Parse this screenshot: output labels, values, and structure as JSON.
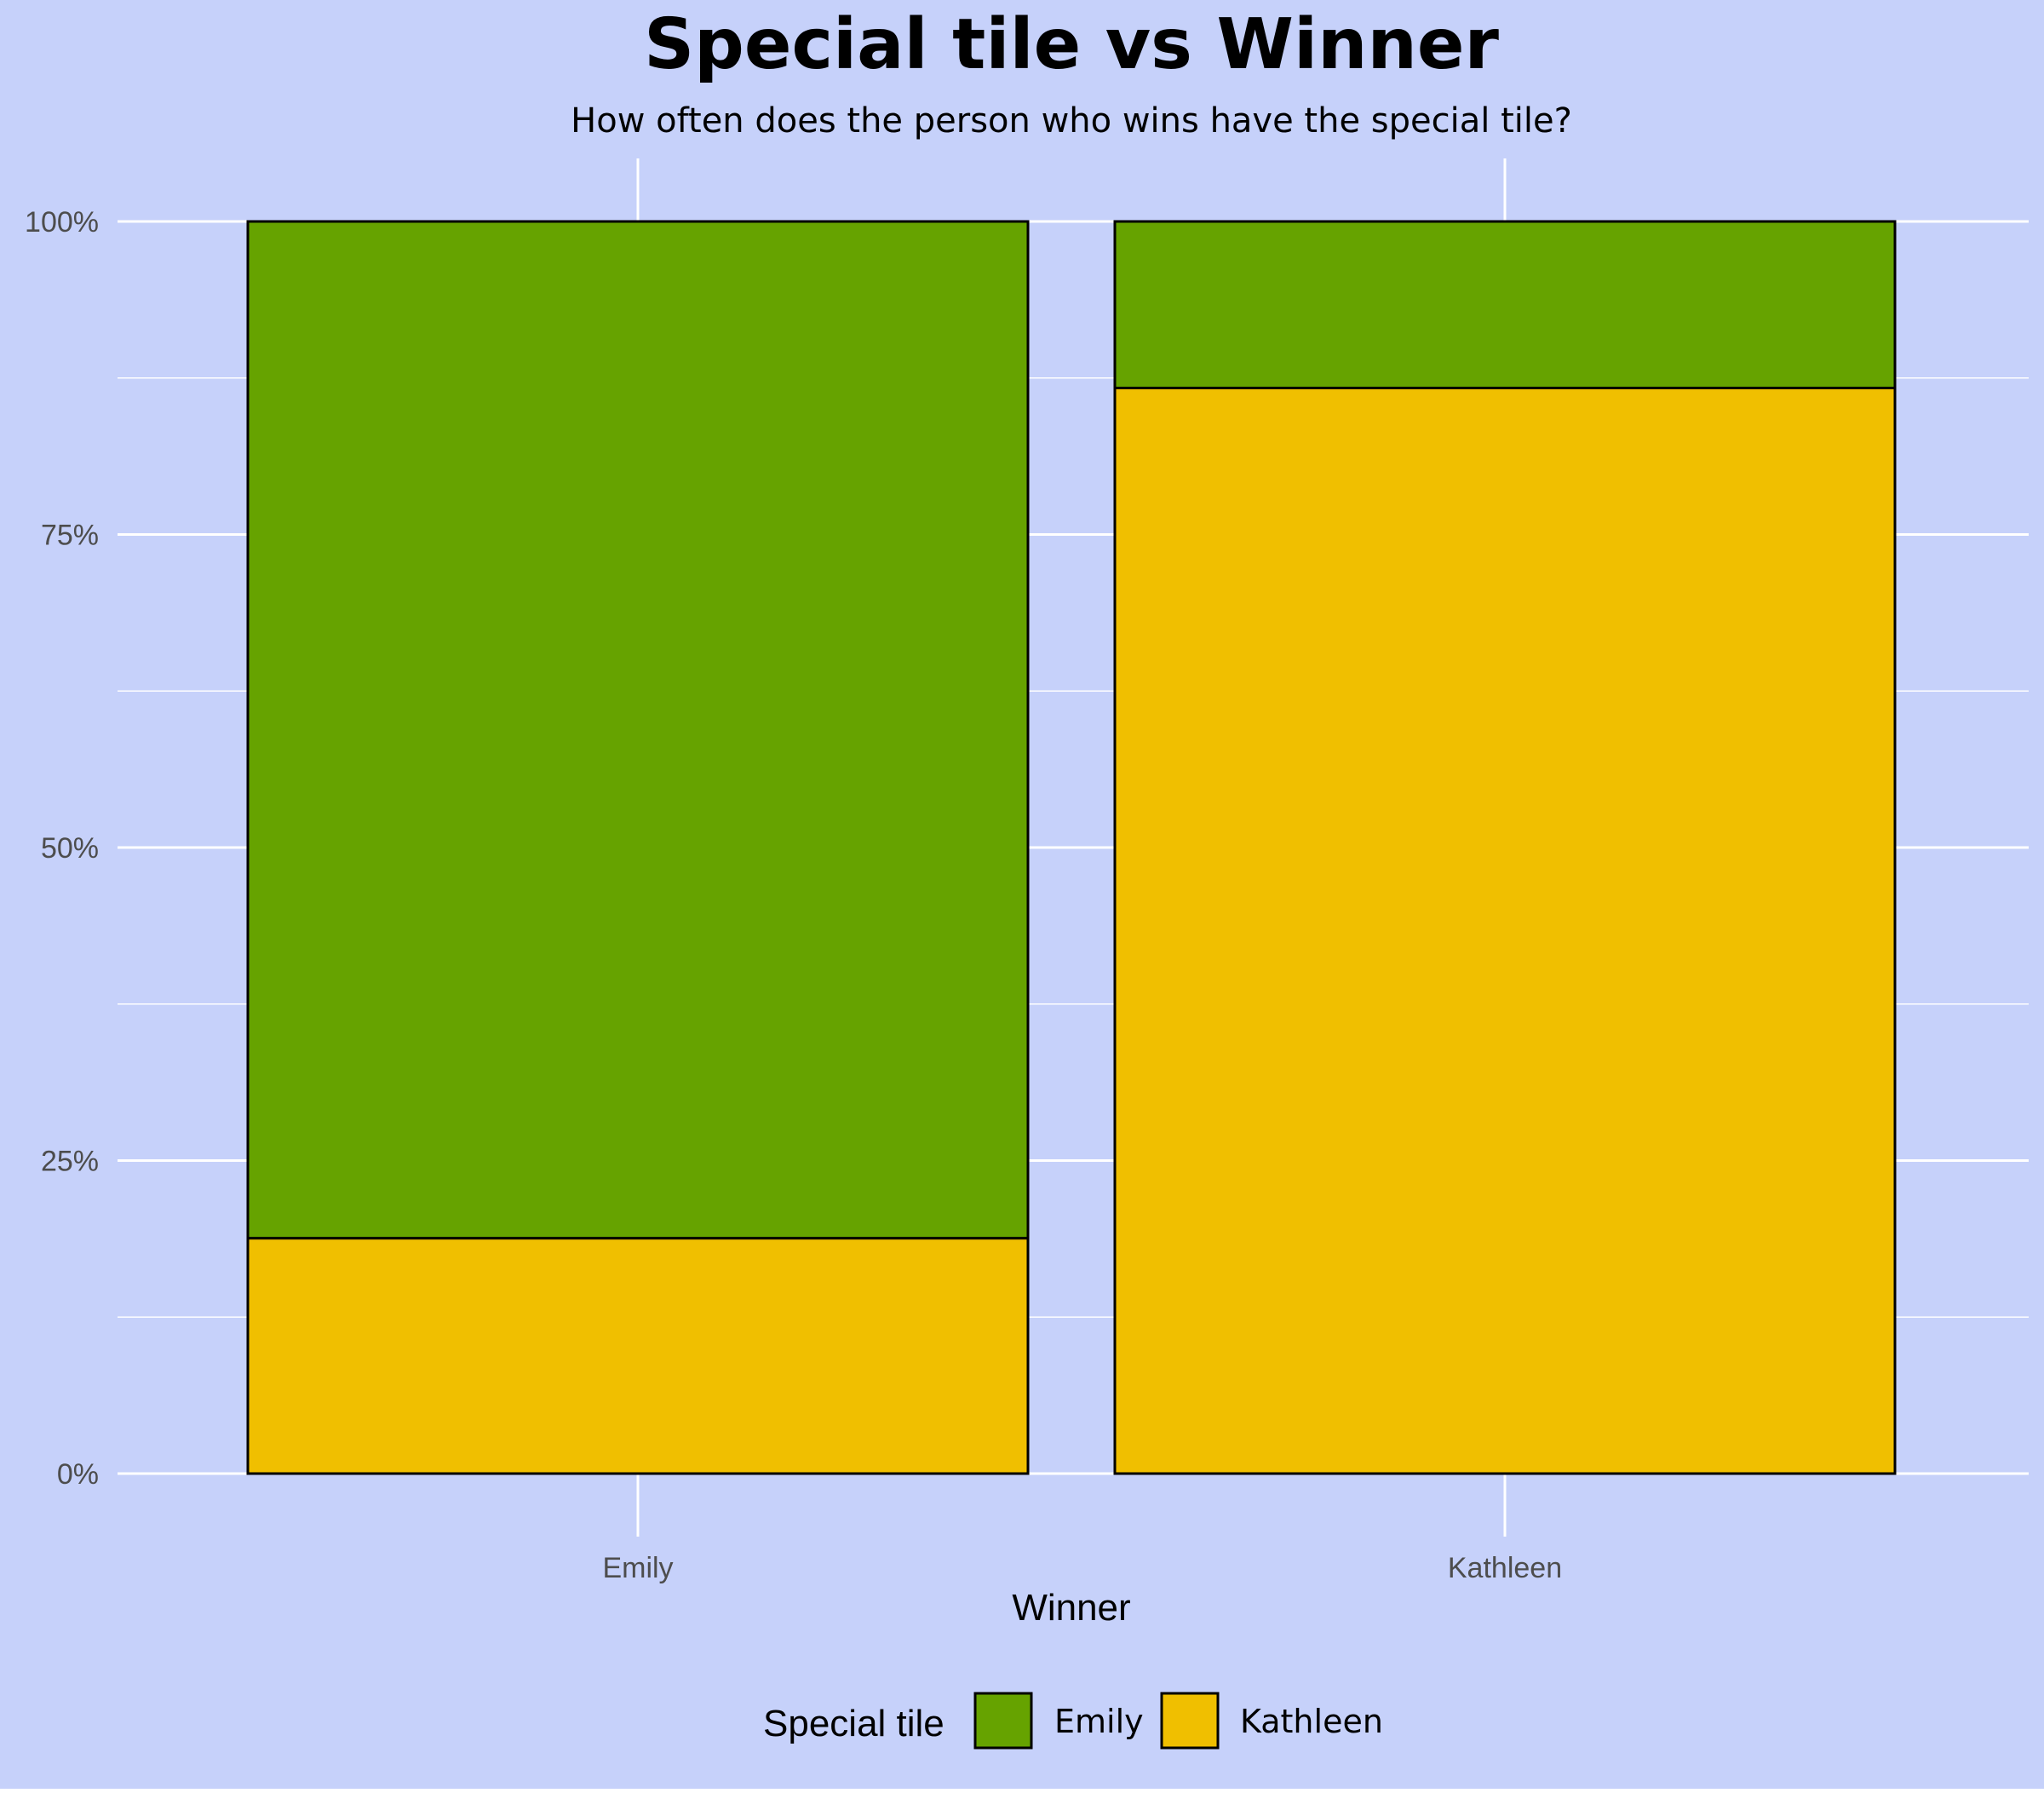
{
  "chart_data": {
    "type": "bar",
    "stacked": true,
    "title": "Special tile vs Winner",
    "subtitle": "How often does the person who wins have the special tile?",
    "xlabel": "Winner",
    "ylabel": "",
    "categories": [
      "Emily",
      "Kathleen"
    ],
    "series": [
      {
        "name": "Emily",
        "color": "#66a300",
        "values": [
          0.812,
          0.133
        ]
      },
      {
        "name": "Kathleen",
        "color": "#f0bf00",
        "values": [
          0.188,
          0.867
        ]
      }
    ],
    "ylim": [
      0,
      1
    ],
    "yticks": [
      0,
      0.25,
      0.5,
      0.75,
      1
    ],
    "ytick_labels": [
      "0%",
      "25%",
      "50%",
      "75%",
      "100%"
    ],
    "grid": true,
    "legend": {
      "title": "Special tile",
      "position": "bottom"
    },
    "colors": {
      "background": "#c6d1fa",
      "grid": "#ffffff",
      "bar_outline": "#000000"
    }
  }
}
